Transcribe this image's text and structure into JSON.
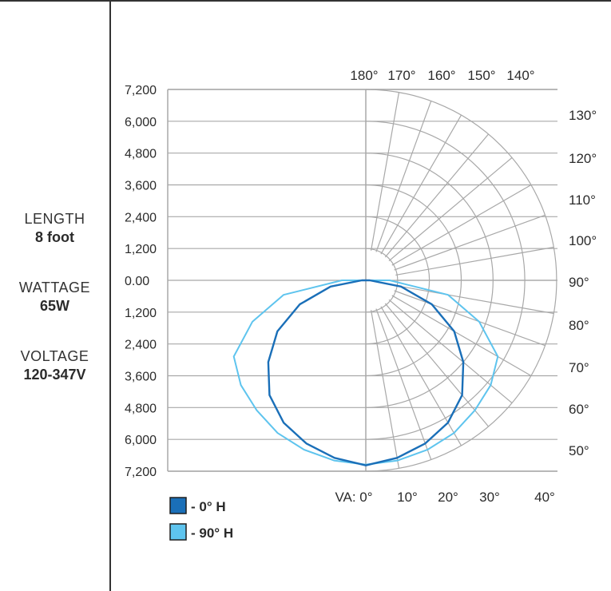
{
  "specs": [
    {
      "label": "LENGTH",
      "value": "8 foot"
    },
    {
      "label": "WATTAGE",
      "value": "65W"
    },
    {
      "label": "VOLTAGE",
      "value": "120-347V"
    }
  ],
  "chart_data": {
    "type": "polar-candela",
    "title": "",
    "candela_ticks_upper": [
      "7,200",
      "6,000",
      "4,800",
      "3,600",
      "2,400",
      "1,200",
      "0.00"
    ],
    "candela_ticks_lower": [
      "1,200",
      "2,400",
      "3,600",
      "4,800",
      "6,000",
      "7,200"
    ],
    "candela_max": 7200,
    "top_angle_labels": [
      "180°",
      "170°",
      "160°",
      "150°",
      "140°"
    ],
    "right_angle_labels": [
      "130°",
      "120°",
      "110°",
      "100°",
      "90°",
      "80°",
      "70°",
      "60°",
      "50°"
    ],
    "bottom_angle_labels": [
      "VA: 0°",
      "10°",
      "20°",
      "30°",
      "40°"
    ],
    "legend": [
      {
        "label": "- 0° H",
        "color": "#1a6fb8"
      },
      {
        "label": "- 90° H",
        "color": "#5ec4ee"
      }
    ],
    "series": [
      {
        "name": "- 0° H",
        "color": "#1a6fb8",
        "angles": [
          0,
          10,
          20,
          30,
          40,
          50,
          60,
          70,
          80,
          90,
          100,
          110,
          120,
          130,
          140,
          150,
          160,
          170,
          180
        ],
        "candela": [
          6980,
          6800,
          6550,
          6200,
          5650,
          4800,
          3850,
          2650,
          1350,
          150,
          0,
          0,
          0,
          0,
          0,
          0,
          0,
          0,
          0
        ]
      },
      {
        "name": "- 90° H",
        "color": "#5ec4ee",
        "angles": [
          0,
          10,
          20,
          30,
          40,
          50,
          60,
          70,
          80,
          90,
          100,
          110,
          120,
          130,
          140,
          150,
          160,
          170,
          180
        ],
        "candela": [
          6950,
          6900,
          6800,
          6650,
          6400,
          6150,
          5750,
          4550,
          3150,
          900,
          0,
          0,
          0,
          0,
          0,
          0,
          0,
          0,
          0
        ]
      }
    ]
  }
}
